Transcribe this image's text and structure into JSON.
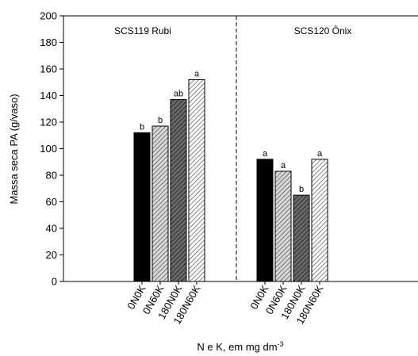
{
  "chart_data": {
    "type": "bar",
    "ylabel": "Massa seca PA (g/vaso)",
    "xlabel_main": "N e K, em mg dm",
    "xlabel_sup": "-3",
    "ylim": [
      0,
      200
    ],
    "yticks": [
      0,
      20,
      40,
      60,
      80,
      100,
      120,
      140,
      160,
      180,
      200
    ],
    "grid": false,
    "panel_divider": "dashed",
    "groups": [
      {
        "name": "SCS119 Rubi",
        "categories": [
          "0N0K",
          "0N60K",
          "180N0K",
          "180N60K"
        ],
        "values": [
          112,
          117,
          137,
          152
        ],
        "letters": [
          "b",
          "b",
          "ab",
          "a"
        ]
      },
      {
        "name": "SCS120 Ônix",
        "categories": [
          "0N0K",
          "0N60K",
          "180N0K",
          "180N60K"
        ],
        "values": [
          92,
          83,
          65,
          92
        ],
        "letters": [
          "a",
          "a",
          "b",
          "a"
        ]
      }
    ],
    "bar_styles": [
      {
        "fill": "#000000",
        "pattern": "solid"
      },
      {
        "fill": "#c8c8c8",
        "pattern": "hatch-light"
      },
      {
        "fill": "#4a4a4a",
        "pattern": "hatch-dark"
      },
      {
        "fill": "#ffffff",
        "pattern": "hatch-white"
      }
    ]
  }
}
